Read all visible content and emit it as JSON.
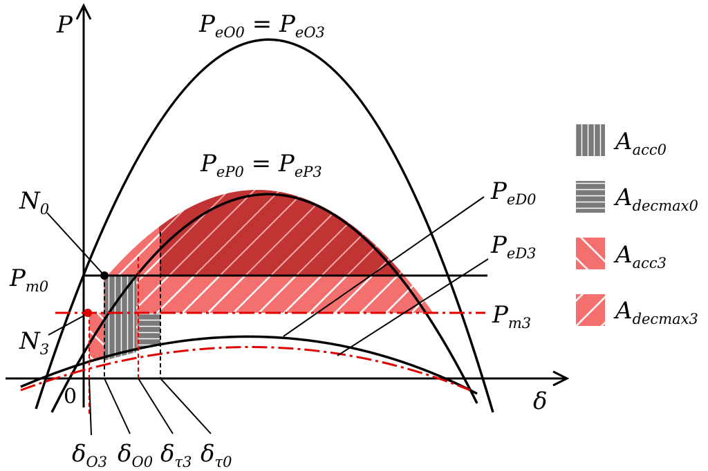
{
  "axes": {
    "y_label": "P",
    "x_label": "δ",
    "origin_label": "0"
  },
  "curves": {
    "pre_fault": {
      "label_main": "P",
      "label_sub": "eO0",
      "eq": " = ",
      "label2_main": "P",
      "label2_sub": "eO3"
    },
    "post_fault": {
      "label_main": "P",
      "label_sub": "eP0",
      "eq": " = ",
      "label2_main": "P",
      "label2_sub": "eP3"
    },
    "during_fault_0": {
      "label_main": "P",
      "label_sub": "eD0"
    },
    "during_fault_3": {
      "label_main": "P",
      "label_sub": "eD3"
    }
  },
  "power_lines": {
    "pm0": {
      "label_main": "P",
      "label_sub": "m0"
    },
    "pm3": {
      "label_main": "P",
      "label_sub": "m3"
    }
  },
  "points": {
    "n0": {
      "label_main": "N",
      "label_sub": "0"
    },
    "n3": {
      "label_main": "N",
      "label_sub": "3"
    }
  },
  "angles": [
    {
      "label_main": "δ",
      "label_sub": "O3"
    },
    {
      "label_main": "δ",
      "label_sub": "O0"
    },
    {
      "label_main": "δ",
      "label_sub": "τ3"
    },
    {
      "label_main": "δ",
      "label_sub": "τ0"
    }
  ],
  "legend": [
    {
      "label_main": "A",
      "label_sub": "acc0",
      "pattern": "vertical-gray"
    },
    {
      "label_main": "A",
      "label_sub": "decmax0",
      "pattern": "horizontal-gray"
    },
    {
      "label_main": "A",
      "label_sub": "acc3",
      "pattern": "diagonal-red-up"
    },
    {
      "label_main": "A",
      "label_sub": "decmax3",
      "pattern": "diagonal-red-down"
    }
  ],
  "colors": {
    "black": "#000000",
    "red_line": "#e00000",
    "red_fill": "#f4706e",
    "red_dark": "#c23434",
    "gray_fill": "#7a7a7a"
  }
}
